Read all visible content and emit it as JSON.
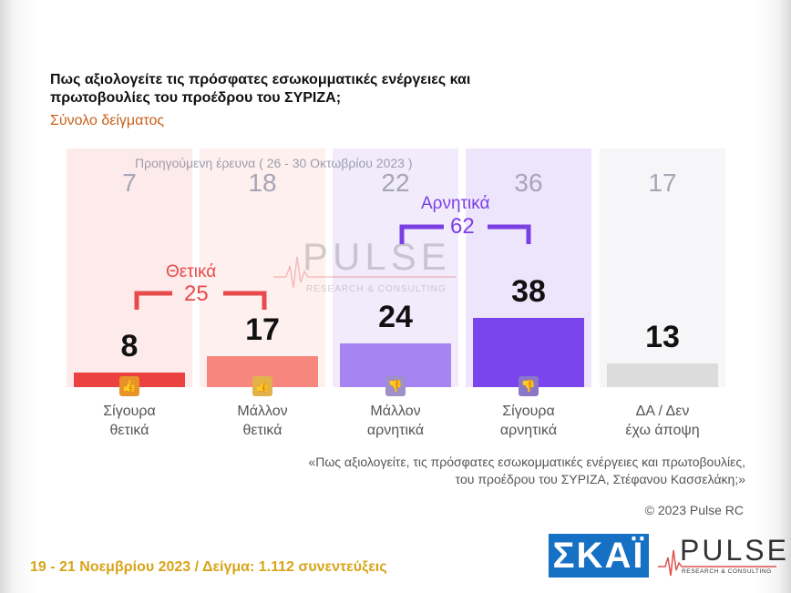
{
  "header": {
    "title": "Πως αξιολογείτε τις πρόσφατες εσωκομματικές ενέργειες και πρωτοβουλίες του προέδρου του ΣΥΡΙΖΑ;",
    "subtitle": "Σύνολο δείγματος"
  },
  "chart_data": {
    "type": "bar",
    "title": "Πως αξιολογείτε τις πρόσφατες εσωκομματικές ενέργειες και πρωτοβουλίες του προέδρου του ΣΥΡΙΖΑ;",
    "subtitle": "Σύνολο δείγματος",
    "categories": [
      "Σίγουρα θετικά",
      "Μάλλον θετικά",
      "Μάλλον αρνητικά",
      "Σίγουρα αρνητικά",
      "ΔΑ / Δεν έχω άποψη"
    ],
    "categories_lines": [
      [
        "Σίγουρα",
        "θετικά"
      ],
      [
        "Μάλλον",
        "θετικά"
      ],
      [
        "Μάλλον",
        "αρνητικά"
      ],
      [
        "Σίγουρα",
        "αρνητικά"
      ],
      [
        "ΔΑ / Δεν",
        "έχω άποψη"
      ]
    ],
    "values": [
      8,
      17,
      24,
      38,
      13
    ],
    "previous": {
      "label": "Προηγούμενη έρευνα  ( 26 - 30 Οκτωβρίου 2023 )",
      "values": [
        7,
        18,
        22,
        36,
        17
      ]
    },
    "groups": [
      {
        "label": "Θετικά",
        "total": "25",
        "color": "#e84b4b"
      },
      {
        "label": "Αρνητικά",
        "total": "62",
        "color": "#7b3fe4"
      }
    ],
    "bar_colors": [
      "#ec4141",
      "#f7877e",
      "#a684f2",
      "#7a45ec",
      "#dcdcdc"
    ],
    "background_colors": [
      "#fdeaea",
      "#fdf0ee",
      "#f1ebfc",
      "#ede5fc",
      "#f6f6f8"
    ],
    "icon_colors": [
      "#e8932a",
      "#e2b14a",
      "#9e90c8",
      "#8a77c8"
    ],
    "icons": [
      "thumbs-up-double-icon",
      "thumbs-up-icon",
      "thumbs-down-icon",
      "thumbs-down-double-icon"
    ]
  },
  "watermark": {
    "word": "PULSE",
    "sub": "RESEARCH & CONSULTING"
  },
  "quote": {
    "line1": "«Πως αξιολογείτε, τις πρόσφατες εσωκομματικές ενέργειες και πρωτοβουλίες,",
    "line2": "του προέδρου του ΣΥΡΙΖΑ, Στέφανου Κασσελάκη;»"
  },
  "copyright": "© 2023 Pulse RC",
  "footer": {
    "date_sample": "19 - 21  Νοεμβρίου  2023  /  Δείγμα:  1.112 συνεντεύξεις"
  },
  "logos": {
    "skai": "ΣΚΑΪ",
    "pulse": "PULSE",
    "pulse_sub": "RESEARCH & CONSULTING"
  }
}
